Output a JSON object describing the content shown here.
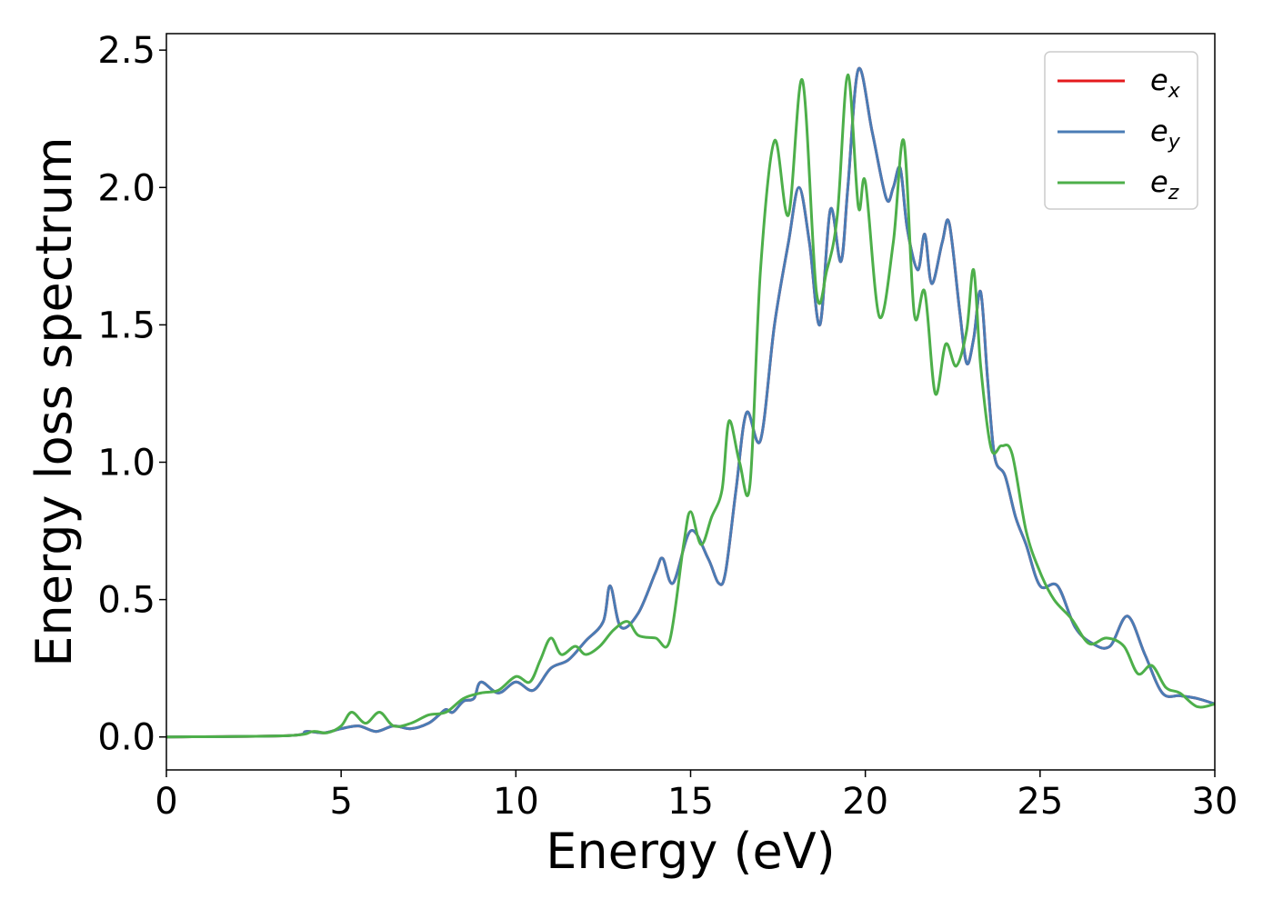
{
  "chart_data": {
    "type": "line",
    "xlabel": "Energy (eV)",
    "ylabel": "Energy loss spectrum",
    "xlim": [
      0,
      30
    ],
    "ylim": [
      -0.12,
      2.56
    ],
    "xticks": [
      0,
      5,
      10,
      15,
      20,
      25,
      30
    ],
    "yticks": [
      0.0,
      0.5,
      1.0,
      1.5,
      2.0,
      2.5
    ],
    "xtick_labels": [
      "0",
      "5",
      "10",
      "15",
      "20",
      "25",
      "30"
    ],
    "ytick_labels": [
      "0.0",
      "0.5",
      "1.0",
      "1.5",
      "2.0",
      "2.5"
    ],
    "grid": false,
    "legend_position": "top-right",
    "series": [
      {
        "name": "e",
        "subscript": "x",
        "color": "#e41a1c",
        "x": [
          0,
          3.5,
          4.0,
          4.5,
          5.0,
          5.5,
          6.0,
          6.5,
          7.0,
          7.5,
          7.8,
          8.0,
          8.2,
          8.5,
          8.8,
          9.0,
          9.5,
          10.0,
          10.5,
          11.0,
          11.5,
          12.0,
          12.5,
          12.7,
          13.0,
          13.5,
          14.0,
          14.2,
          14.5,
          15.0,
          15.5,
          15.8,
          16.0,
          16.3,
          16.6,
          17.0,
          17.4,
          17.8,
          18.1,
          18.4,
          18.7,
          19.0,
          19.3,
          19.5,
          19.8,
          20.2,
          20.6,
          20.8,
          21.0,
          21.2,
          21.5,
          21.7,
          21.9,
          22.2,
          22.4,
          22.7,
          22.9,
          23.1,
          23.3,
          23.5,
          23.7,
          24.0,
          24.3,
          24.6,
          25.0,
          25.5,
          26.0,
          26.5,
          27.0,
          27.5,
          28.0,
          28.5,
          29.0,
          29.5,
          30.0
        ],
        "y": [
          0,
          0.005,
          0.02,
          0.015,
          0.03,
          0.04,
          0.02,
          0.04,
          0.03,
          0.05,
          0.08,
          0.1,
          0.09,
          0.13,
          0.14,
          0.2,
          0.16,
          0.2,
          0.17,
          0.25,
          0.28,
          0.35,
          0.42,
          0.55,
          0.4,
          0.45,
          0.6,
          0.65,
          0.56,
          0.75,
          0.65,
          0.56,
          0.6,
          0.9,
          1.18,
          1.08,
          1.5,
          1.8,
          2.0,
          1.8,
          1.5,
          1.92,
          1.73,
          2.0,
          2.43,
          2.2,
          1.96,
          2.0,
          2.07,
          1.85,
          1.7,
          1.83,
          1.65,
          1.8,
          1.87,
          1.55,
          1.36,
          1.45,
          1.62,
          1.3,
          1.02,
          0.95,
          0.8,
          0.7,
          0.55,
          0.55,
          0.4,
          0.34,
          0.33,
          0.44,
          0.3,
          0.16,
          0.15,
          0.14,
          0.12
        ]
      },
      {
        "name": "e",
        "subscript": "y",
        "color": "#4a7cb5",
        "x": [
          0,
          3.5,
          4.0,
          4.5,
          5.0,
          5.5,
          6.0,
          6.5,
          7.0,
          7.5,
          7.8,
          8.0,
          8.2,
          8.5,
          8.8,
          9.0,
          9.5,
          10.0,
          10.5,
          11.0,
          11.5,
          12.0,
          12.5,
          12.7,
          13.0,
          13.5,
          14.0,
          14.2,
          14.5,
          15.0,
          15.5,
          15.8,
          16.0,
          16.3,
          16.6,
          17.0,
          17.4,
          17.8,
          18.1,
          18.4,
          18.7,
          19.0,
          19.3,
          19.5,
          19.8,
          20.2,
          20.6,
          20.8,
          21.0,
          21.2,
          21.5,
          21.7,
          21.9,
          22.2,
          22.4,
          22.7,
          22.9,
          23.1,
          23.3,
          23.5,
          23.7,
          24.0,
          24.3,
          24.6,
          25.0,
          25.5,
          26.0,
          26.5,
          27.0,
          27.5,
          28.0,
          28.5,
          29.0,
          29.5,
          30.0
        ],
        "y": [
          0,
          0.005,
          0.02,
          0.015,
          0.03,
          0.04,
          0.02,
          0.04,
          0.03,
          0.05,
          0.08,
          0.1,
          0.09,
          0.13,
          0.14,
          0.2,
          0.16,
          0.2,
          0.17,
          0.25,
          0.28,
          0.35,
          0.42,
          0.55,
          0.4,
          0.45,
          0.6,
          0.65,
          0.56,
          0.75,
          0.65,
          0.56,
          0.6,
          0.9,
          1.18,
          1.08,
          1.5,
          1.8,
          2.0,
          1.8,
          1.5,
          1.92,
          1.73,
          2.0,
          2.43,
          2.2,
          1.96,
          2.0,
          2.07,
          1.85,
          1.7,
          1.83,
          1.65,
          1.8,
          1.87,
          1.55,
          1.36,
          1.45,
          1.62,
          1.3,
          1.02,
          0.95,
          0.8,
          0.7,
          0.55,
          0.55,
          0.4,
          0.34,
          0.33,
          0.44,
          0.3,
          0.16,
          0.15,
          0.14,
          0.12
        ]
      },
      {
        "name": "e",
        "subscript": "z",
        "color": "#4daf4a",
        "x": [
          0,
          3.5,
          4.2,
          4.6,
          5.0,
          5.3,
          5.7,
          6.1,
          6.5,
          7.0,
          7.5,
          8.0,
          8.5,
          9.0,
          9.5,
          10.0,
          10.4,
          10.7,
          11.0,
          11.3,
          11.7,
          12.0,
          12.4,
          12.8,
          13.2,
          13.5,
          14.0,
          14.4,
          14.8,
          15.0,
          15.3,
          15.6,
          15.9,
          16.1,
          16.4,
          16.7,
          17.0,
          17.4,
          17.8,
          18.2,
          18.6,
          18.9,
          19.2,
          19.5,
          19.8,
          20.0,
          20.4,
          20.8,
          21.1,
          21.4,
          21.7,
          22.0,
          22.3,
          22.6,
          22.9,
          23.1,
          23.3,
          23.6,
          23.9,
          24.2,
          24.6,
          25.0,
          25.4,
          25.9,
          26.4,
          26.9,
          27.4,
          27.8,
          28.2,
          28.6,
          29.0,
          29.5,
          30.0
        ],
        "y": [
          0,
          0.005,
          0.02,
          0.015,
          0.04,
          0.09,
          0.05,
          0.09,
          0.04,
          0.05,
          0.08,
          0.09,
          0.14,
          0.16,
          0.17,
          0.22,
          0.2,
          0.28,
          0.36,
          0.3,
          0.33,
          0.3,
          0.33,
          0.39,
          0.42,
          0.37,
          0.36,
          0.35,
          0.7,
          0.82,
          0.7,
          0.8,
          0.9,
          1.15,
          1.0,
          0.92,
          1.7,
          2.17,
          1.9,
          2.39,
          1.62,
          1.7,
          1.9,
          2.41,
          1.93,
          2.02,
          1.53,
          1.8,
          2.17,
          1.54,
          1.62,
          1.25,
          1.43,
          1.35,
          1.48,
          1.7,
          1.35,
          1.05,
          1.06,
          1.03,
          0.75,
          0.6,
          0.5,
          0.43,
          0.34,
          0.36,
          0.33,
          0.23,
          0.26,
          0.18,
          0.16,
          0.11,
          0.12
        ]
      }
    ]
  }
}
